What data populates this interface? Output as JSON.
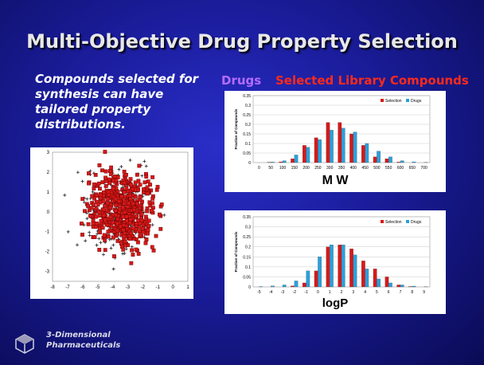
{
  "title": "Multi-Objective Drug Property Selection",
  "subtitle": "Compounds selected for synthesis can have tailored property distributions.",
  "legend": {
    "drugs": "Drugs",
    "selected": "Selected Library Compounds"
  },
  "company": {
    "line1": "3-Dimensional",
    "line2": "Pharmaceuticals"
  },
  "colors": {
    "selection": "#d81818",
    "drugs": "#2aa0dc",
    "plus": "#222222"
  },
  "chart_data": [
    {
      "type": "scatter",
      "xlim": [
        -8,
        1
      ],
      "ylim": [
        -3.5,
        3
      ],
      "xticks": [
        "-8",
        "-7",
        "-6",
        "-5",
        "-4",
        "-3",
        "-2",
        "-1",
        "0",
        "1"
      ],
      "yticks": [
        "3",
        "2",
        "1",
        "0",
        "-1",
        "-2",
        "-3"
      ],
      "series": [],
      "grid": false
    },
    {
      "type": "bar",
      "title": "",
      "xlabel": "M W",
      "ylabel": "Fraction of Compounds",
      "ylim": [
        0,
        0.35
      ],
      "yticks": [
        "0.35",
        "0.3",
        "0.25",
        "0.2",
        "0.15",
        "0.1",
        "0.05",
        "0"
      ],
      "categories": [
        "0",
        "50",
        "100",
        "150",
        "200",
        "250",
        "300",
        "350",
        "400",
        "450",
        "500",
        "550",
        "600",
        "650",
        "700"
      ],
      "series": [
        {
          "name": "Selection",
          "values": [
            0.0,
            0.002,
            0.004,
            0.02,
            0.09,
            0.13,
            0.21,
            0.21,
            0.15,
            0.09,
            0.03,
            0.02,
            0.003,
            0.0,
            0.0
          ]
        },
        {
          "name": "Drugs",
          "values": [
            0.0,
            0.003,
            0.01,
            0.04,
            0.08,
            0.12,
            0.17,
            0.18,
            0.16,
            0.1,
            0.06,
            0.03,
            0.01,
            0.004,
            0.001
          ]
        }
      ],
      "legend": [
        "Selection",
        "Drugs"
      ]
    },
    {
      "type": "bar",
      "title": "",
      "xlabel": "logP",
      "ylabel": "Fraction of Compounds",
      "ylim": [
        0,
        0.35
      ],
      "yticks": [
        "0.35",
        "0.3",
        "0.25",
        "0.2",
        "0.15",
        "0.1",
        "0.05",
        "0"
      ],
      "categories": [
        "-5",
        "-4",
        "-3",
        "-2",
        "-1",
        "0",
        "1",
        "2",
        "3",
        "4",
        "5",
        "6",
        "7",
        "8",
        "9"
      ],
      "series": [
        {
          "name": "Selection",
          "values": [
            0.0,
            0.0,
            0.0,
            0.005,
            0.02,
            0.08,
            0.2,
            0.21,
            0.19,
            0.13,
            0.09,
            0.05,
            0.01,
            0.002,
            0.0
          ]
        },
        {
          "name": "Drugs",
          "values": [
            0.002,
            0.005,
            0.01,
            0.03,
            0.08,
            0.15,
            0.21,
            0.21,
            0.16,
            0.09,
            0.04,
            0.02,
            0.01,
            0.004,
            0.001
          ]
        }
      ],
      "legend": [
        "Selection",
        "Drugs"
      ]
    }
  ]
}
